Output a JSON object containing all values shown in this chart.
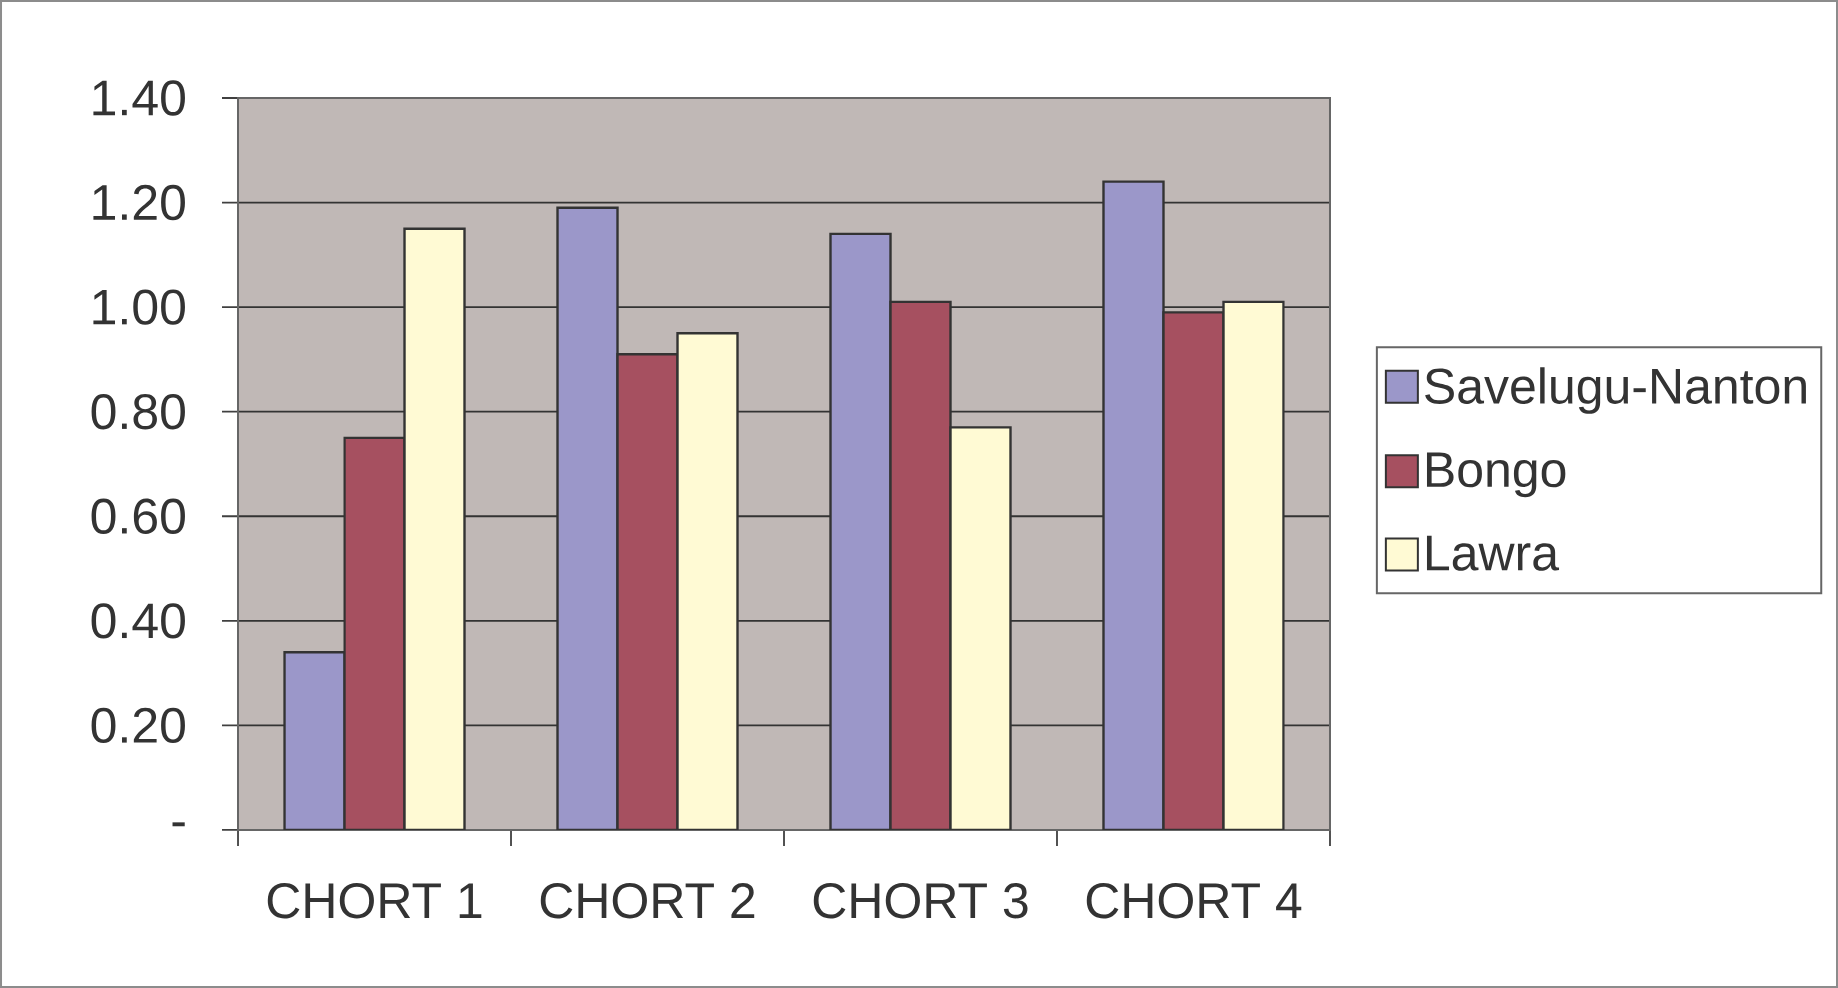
{
  "chart_data": {
    "type": "bar",
    "categories": [
      "CHORT 1",
      "CHORT 2",
      "CHORT 3",
      "CHORT 4"
    ],
    "series": [
      {
        "name": "Savelugu-Nanton",
        "color": "#9b97c9",
        "values": [
          0.34,
          1.19,
          1.14,
          1.24
        ]
      },
      {
        "name": "Bongo",
        "color": "#a65060",
        "values": [
          0.75,
          0.91,
          1.01,
          0.99
        ]
      },
      {
        "name": "Lawra",
        "color": "#fffad4",
        "values": [
          1.15,
          0.95,
          0.77,
          1.01
        ]
      }
    ],
    "ylim": [
      0,
      1.4
    ],
    "yticks": [
      {
        "value": 0,
        "label": "-"
      },
      {
        "value": 0.2,
        "label": "0.20"
      },
      {
        "value": 0.4,
        "label": "0.40"
      },
      {
        "value": 0.6,
        "label": "0.60"
      },
      {
        "value": 0.8,
        "label": "0.80"
      },
      {
        "value": 1.0,
        "label": "1.00"
      },
      {
        "value": 1.2,
        "label": "1.20"
      },
      {
        "value": 1.4,
        "label": "1.40"
      }
    ],
    "grid": "y",
    "legend": "right"
  }
}
